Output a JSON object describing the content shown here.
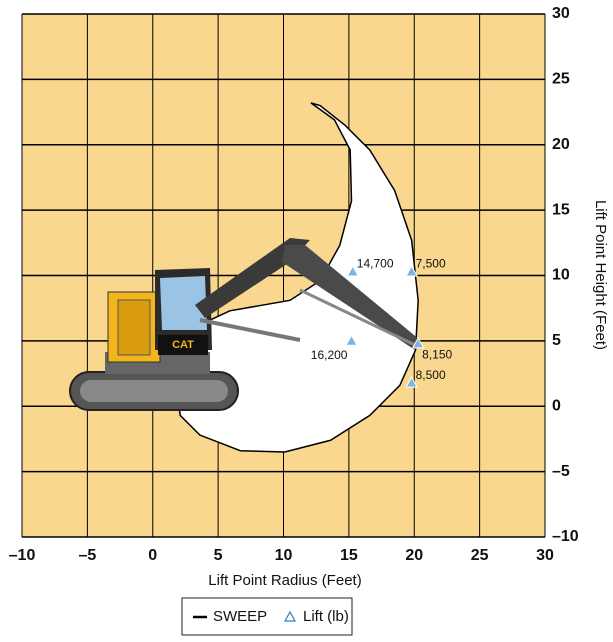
{
  "chart_data": {
    "type": "scatter",
    "xlabel": "Lift Point Radius (Feet)",
    "ylabel": "Lift Point Height (Feet)",
    "xlim": [
      -10,
      30
    ],
    "ylim": [
      -10,
      30
    ],
    "xticks": [
      {
        "value": -10,
        "label": "–10"
      },
      {
        "value": -5,
        "label": "–5"
      },
      0,
      5,
      10,
      15,
      20,
      25,
      30
    ],
    "yticks": [
      {
        "value": -10,
        "label": "–10"
      },
      {
        "value": -5,
        "label": "–5"
      },
      0,
      5,
      10,
      15,
      20,
      25,
      30
    ],
    "grid": true,
    "background": "#f9d78e",
    "legend": "bottom",
    "series": [
      {
        "name": "SWEEP",
        "type": "line",
        "color": "#000000",
        "x": [
          12.1,
          13.9,
          15.1,
          15.2,
          14.3,
          12.8,
          10.5,
          8.2,
          5.9,
          4.4,
          3.6,
          2.5,
          1.9,
          2.1,
          3.6,
          6.7,
          10.1,
          13.6,
          16.6,
          18.9,
          20.1,
          20.3,
          19.8,
          18.5,
          16.6,
          14.7,
          12.8
        ],
        "y": [
          23.2,
          21.9,
          19.6,
          15.7,
          12.3,
          9.6,
          8.1,
          7.7,
          7.3,
          6.6,
          5.0,
          2.8,
          0.8,
          -0.7,
          -2.2,
          -3.4,
          -3.5,
          -2.6,
          -0.7,
          1.6,
          4.3,
          8.1,
          12.7,
          16.5,
          19.6,
          21.5,
          23.0
        ]
      },
      {
        "name": "Lift (lb)",
        "type": "scatter",
        "marker": "triangle",
        "color": "#7db4e0",
        "x": [
          15.3,
          19.8,
          15.2,
          20.3,
          19.8
        ],
        "y": [
          10.3,
          10.3,
          5.0,
          4.8,
          1.8
        ],
        "values": [
          14700,
          7500,
          16200,
          8150,
          8500
        ],
        "value_labels": [
          "14,700",
          "7,500",
          "16,200",
          "8,150",
          "8,500"
        ]
      }
    ]
  }
}
